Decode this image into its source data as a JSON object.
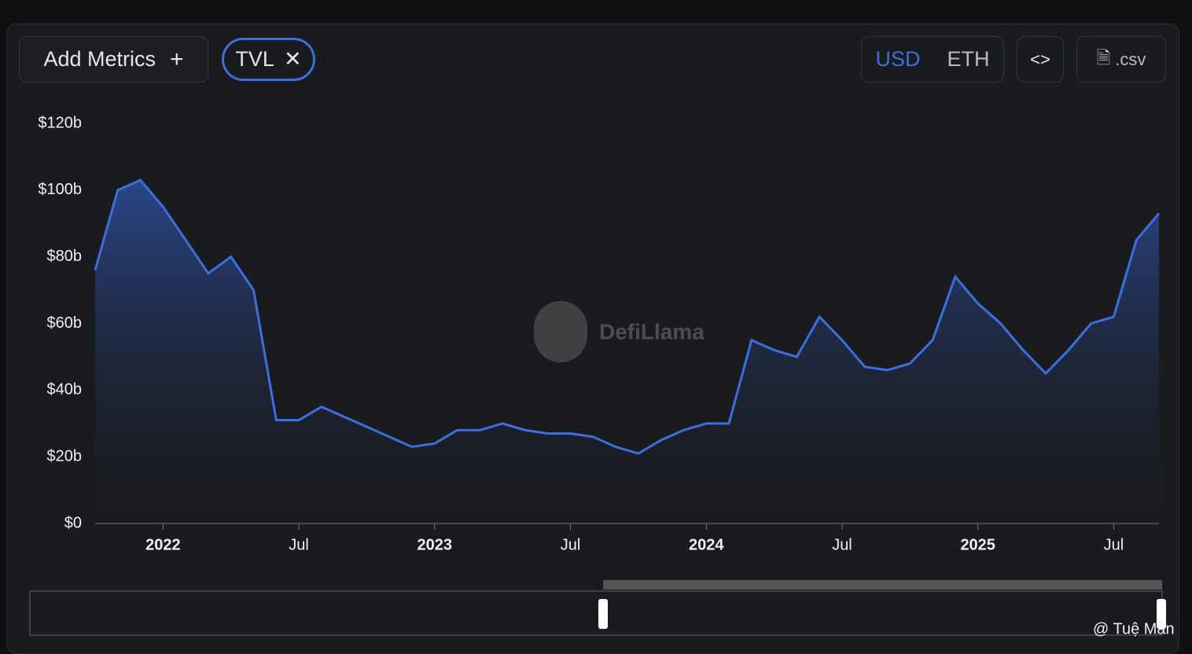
{
  "ui": {
    "add_metrics": "Add Metrics",
    "metric_chip": "TVL",
    "currency_options": [
      "USD",
      "ETH"
    ],
    "csv_button": ".csv",
    "watermark": "DefiLlama",
    "credit": "@ Tuệ Mẫn"
  },
  "chart_data": {
    "type": "area",
    "color": "#3d6fdc",
    "x": [
      "2021-10",
      "2021-11",
      "2021-12",
      "2022-01",
      "2022-02",
      "2022-03",
      "2022-04",
      "2022-05",
      "2022-06",
      "2022-07",
      "2022-08",
      "2022-09",
      "2022-10",
      "2022-11",
      "2022-12",
      "2023-01",
      "2023-02",
      "2023-03",
      "2023-04",
      "2023-05",
      "2023-06",
      "2023-07",
      "2023-08",
      "2023-09",
      "2023-10",
      "2023-11",
      "2023-12",
      "2024-01",
      "2024-02",
      "2024-03",
      "2024-04",
      "2024-05",
      "2024-06",
      "2024-07",
      "2024-08",
      "2024-09",
      "2024-10",
      "2024-11",
      "2024-12",
      "2025-01",
      "2025-02",
      "2025-03",
      "2025-04",
      "2025-05",
      "2025-06",
      "2025-07",
      "2025-08",
      "2025-09"
    ],
    "values": [
      76,
      100,
      103,
      95,
      85,
      75,
      80,
      70,
      31,
      31,
      35,
      32,
      29,
      26,
      23,
      24,
      28,
      28,
      30,
      28,
      27,
      27,
      26,
      23,
      21,
      25,
      28,
      30,
      30,
      55,
      52,
      50,
      62,
      55,
      47,
      46,
      48,
      55,
      74,
      66,
      60,
      52,
      45,
      52,
      60,
      62,
      85,
      93
    ],
    "xlim": [
      "2021-10",
      "2025-09"
    ],
    "xticks": [
      {
        "value": "2022-01",
        "label": "2022"
      },
      {
        "value": "2022-07",
        "label": "Jul"
      },
      {
        "value": "2023-01",
        "label": "2023"
      },
      {
        "value": "2023-07",
        "label": "Jul"
      },
      {
        "value": "2024-01",
        "label": "2024"
      },
      {
        "value": "2024-07",
        "label": "Jul"
      },
      {
        "value": "2025-01",
        "label": "2025"
      },
      {
        "value": "2025-07",
        "label": "Jul"
      }
    ],
    "ylim": [
      0,
      120
    ],
    "yticks": [
      {
        "value": 0,
        "label": "$0"
      },
      {
        "value": 20,
        "label": "$20b"
      },
      {
        "value": 40,
        "label": "$40b"
      },
      {
        "value": 60,
        "label": "$60b"
      },
      {
        "value": 80,
        "label": "$80b"
      },
      {
        "value": 100,
        "label": "$100b"
      },
      {
        "value": 120,
        "label": "$120b"
      }
    ]
  }
}
